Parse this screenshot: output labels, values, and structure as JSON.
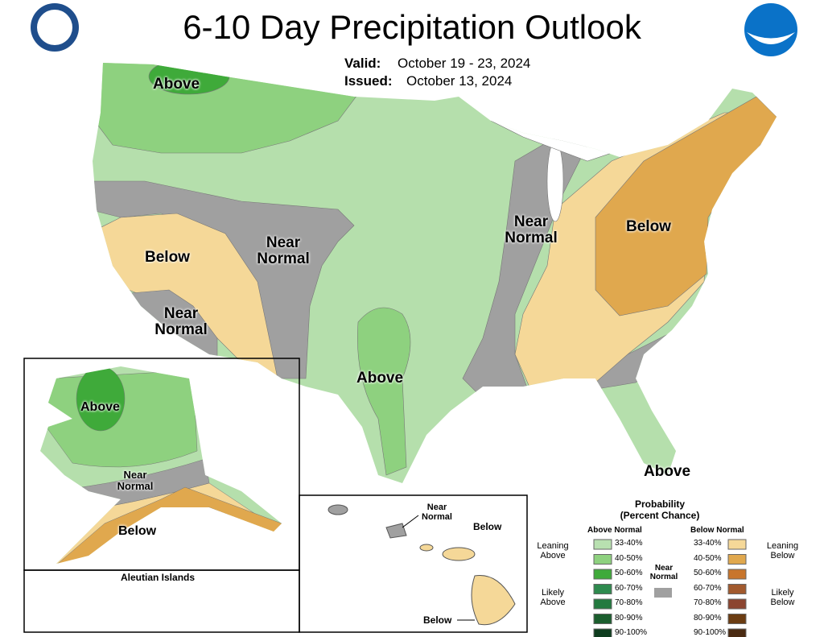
{
  "header": {
    "title": "6-10 Day Precipitation Outlook",
    "valid_label": "Valid:",
    "valid": "October 19 - 23, 2024",
    "issued_label": "Issued:",
    "issued": "October 13, 2024"
  },
  "conus_labels": [
    "Above",
    "Below",
    "Near Normal",
    "Near Normal",
    "Above",
    "Near Normal",
    "Below",
    "Above"
  ],
  "alaska_labels": [
    "Above",
    "Near Normal",
    "Below"
  ],
  "aleutian_title": "Aleutian Islands",
  "hawaii_labels": [
    "Near Normal",
    "Below",
    "Below"
  ],
  "legend": {
    "title": "Probability",
    "subtitle": "(Percent Chance)",
    "above_header": "Above Normal",
    "below_header": "Below Normal",
    "near": "Near Normal",
    "leaning_above": "Leaning Above",
    "likely_above": "Likely Above",
    "leaning_below": "Leaning Below",
    "likely_below": "Likely Below",
    "above_bins": [
      "33-40%",
      "40-50%",
      "50-60%",
      "60-70%",
      "70-80%",
      "80-90%",
      "90-100%"
    ],
    "below_bins": [
      "33-40%",
      "40-50%",
      "50-60%",
      "60-70%",
      "70-80%",
      "80-90%",
      "90-100%"
    ]
  }
}
